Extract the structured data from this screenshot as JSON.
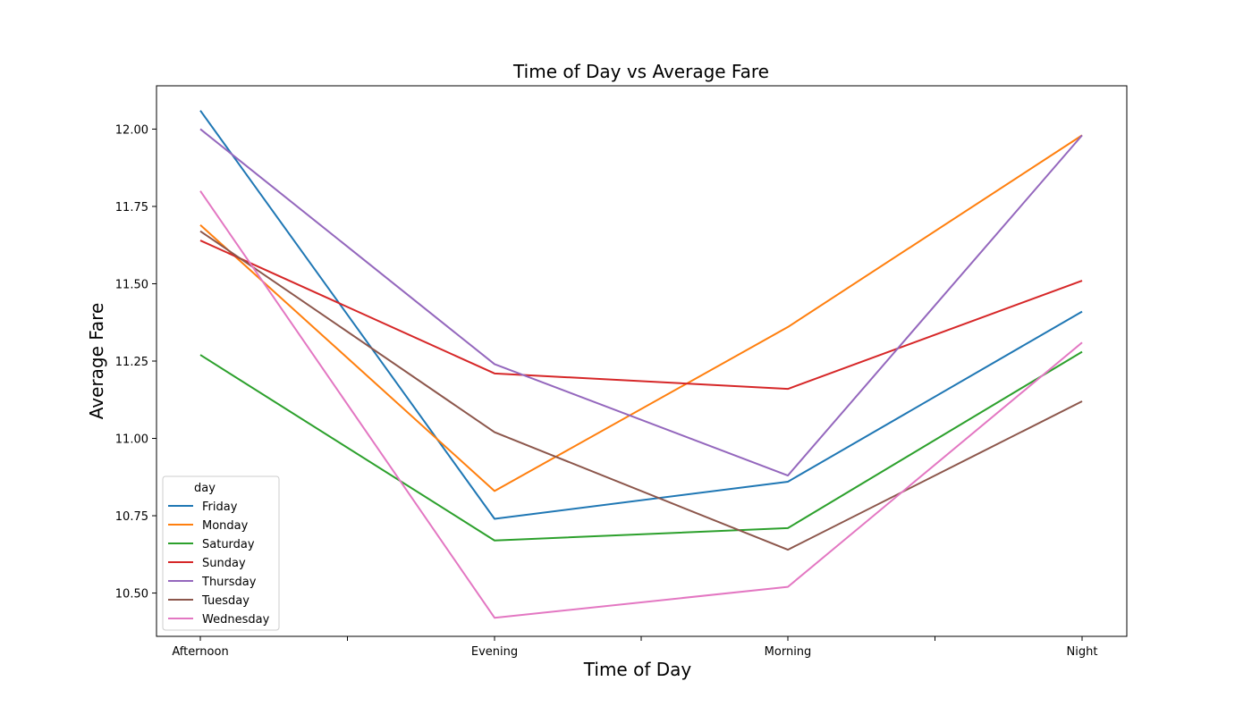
{
  "chart_data": {
    "type": "line",
    "title": "Time of Day vs Average Fare",
    "xlabel": "Time of Day",
    "ylabel": "Average Fare",
    "categories": [
      "Afternoon",
      "Evening",
      "Morning",
      "Night"
    ],
    "ylim": [
      10.36,
      12.14
    ],
    "yticks": [
      "10.50",
      "10.75",
      "11.00",
      "11.25",
      "11.50",
      "11.75",
      "12.00"
    ],
    "grid": false,
    "legend": {
      "title": "day",
      "placement": "lower-left"
    },
    "series": [
      {
        "name": "Friday",
        "color": "#1f77b4",
        "values": [
          12.06,
          10.74,
          10.86,
          11.41
        ]
      },
      {
        "name": "Monday",
        "color": "#ff7f0e",
        "values": [
          11.69,
          10.83,
          11.36,
          11.98
        ]
      },
      {
        "name": "Saturday",
        "color": "#2ca02c",
        "values": [
          11.27,
          10.67,
          10.71,
          11.28
        ]
      },
      {
        "name": "Sunday",
        "color": "#d62728",
        "values": [
          11.64,
          11.21,
          11.16,
          11.51
        ]
      },
      {
        "name": "Thursday",
        "color": "#9467bd",
        "values": [
          12.0,
          11.24,
          10.88,
          11.98
        ]
      },
      {
        "name": "Tuesday",
        "color": "#8c564b",
        "values": [
          11.67,
          11.02,
          10.64,
          11.12
        ]
      },
      {
        "name": "Wednesday",
        "color": "#e377c2",
        "values": [
          11.8,
          10.42,
          10.52,
          11.31
        ]
      }
    ]
  }
}
